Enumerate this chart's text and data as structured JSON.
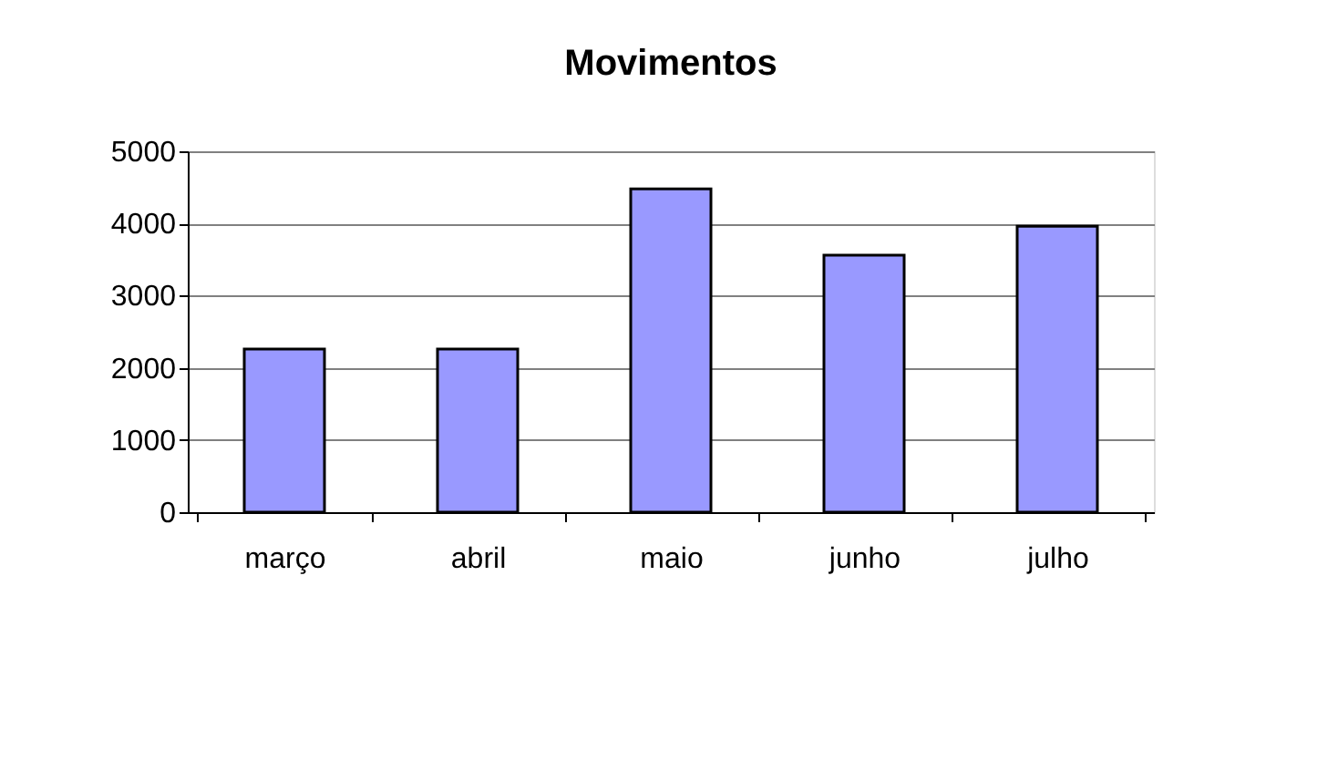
{
  "chart_data": {
    "type": "bar",
    "title": "Movimentos",
    "categories": [
      "março",
      "abril",
      "maio",
      "junho",
      "julho"
    ],
    "series": [
      {
        "color": "#9999ff",
        "values": [
          2260,
          2260,
          4480,
          3560,
          3960
        ]
      }
    ],
    "ylim": [
      0,
      5000
    ],
    "yticks": [
      0,
      1000,
      2000,
      3000,
      4000,
      5000
    ],
    "grid": "y"
  }
}
